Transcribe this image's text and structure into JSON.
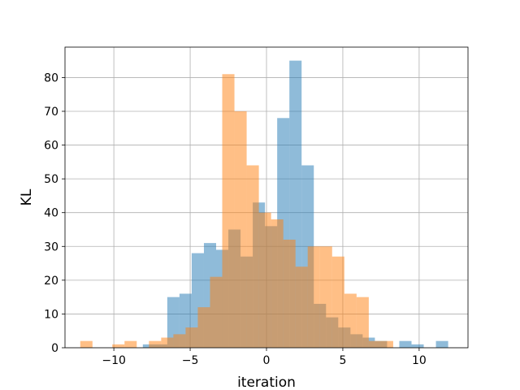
{
  "chart_data": {
    "type": "histogram",
    "title": "",
    "xlabel": "iteration",
    "ylabel": "KL",
    "xlim": [
      -13.2,
      13.2
    ],
    "ylim": [
      0,
      89
    ],
    "grid": true,
    "xticks": [
      -10,
      -5,
      0,
      5,
      10
    ],
    "xtick_labels": [
      "−10",
      "−5",
      "0",
      "5",
      "10"
    ],
    "yticks": [
      0,
      10,
      20,
      30,
      40,
      50,
      60,
      70,
      80
    ],
    "yticks_labels": [
      "0",
      "10",
      "20",
      "30",
      "40",
      "50",
      "60",
      "70",
      "80"
    ],
    "series": [
      {
        "color": "#1f77b4",
        "opacity": 0.5,
        "bins": [
          {
            "x0": -8.1,
            "x1": -6.5,
            "count": 1
          },
          {
            "x0": -6.5,
            "x1": -5.7,
            "count": 15
          },
          {
            "x0": -5.7,
            "x1": -4.9,
            "count": 16
          },
          {
            "x0": -4.9,
            "x1": -4.1,
            "count": 28
          },
          {
            "x0": -4.1,
            "x1": -3.3,
            "count": 31
          },
          {
            "x0": -3.3,
            "x1": -2.5,
            "count": 29
          },
          {
            "x0": -2.5,
            "x1": -1.7,
            "count": 35
          },
          {
            "x0": -1.7,
            "x1": -0.9,
            "count": 27
          },
          {
            "x0": -0.9,
            "x1": -0.1,
            "count": 43
          },
          {
            "x0": -0.1,
            "x1": 0.7,
            "count": 36
          },
          {
            "x0": 0.7,
            "x1": 1.5,
            "count": 68
          },
          {
            "x0": 1.5,
            "x1": 2.3,
            "count": 85
          },
          {
            "x0": 2.3,
            "x1": 3.1,
            "count": 54
          },
          {
            "x0": 3.1,
            "x1": 3.9,
            "count": 13
          },
          {
            "x0": 3.9,
            "x1": 4.7,
            "count": 9
          },
          {
            "x0": 4.7,
            "x1": 5.5,
            "count": 6
          },
          {
            "x0": 5.5,
            "x1": 6.3,
            "count": 4
          },
          {
            "x0": 6.3,
            "x1": 7.1,
            "count": 3
          },
          {
            "x0": 7.1,
            "x1": 7.9,
            "count": 2
          },
          {
            "x0": 8.7,
            "x1": 9.5,
            "count": 2
          },
          {
            "x0": 9.5,
            "x1": 10.3,
            "count": 1
          },
          {
            "x0": 11.1,
            "x1": 11.9,
            "count": 2
          }
        ]
      },
      {
        "color": "#ff7f0e",
        "opacity": 0.5,
        "bins": [
          {
            "x0": -12.2,
            "x1": -11.4,
            "count": 2
          },
          {
            "x0": -10.1,
            "x1": -9.3,
            "count": 1
          },
          {
            "x0": -9.3,
            "x1": -8.5,
            "count": 2
          },
          {
            "x0": -7.7,
            "x1": -6.9,
            "count": 2
          },
          {
            "x0": -6.9,
            "x1": -6.1,
            "count": 3
          },
          {
            "x0": -6.1,
            "x1": -5.3,
            "count": 4
          },
          {
            "x0": -5.3,
            "x1": -4.5,
            "count": 6
          },
          {
            "x0": -4.5,
            "x1": -3.7,
            "count": 12
          },
          {
            "x0": -3.7,
            "x1": -2.9,
            "count": 21
          },
          {
            "x0": -2.9,
            "x1": -2.1,
            "count": 81
          },
          {
            "x0": -2.1,
            "x1": -1.3,
            "count": 70
          },
          {
            "x0": -1.3,
            "x1": -0.5,
            "count": 54
          },
          {
            "x0": -0.5,
            "x1": 0.3,
            "count": 40
          },
          {
            "x0": 0.3,
            "x1": 1.1,
            "count": 38
          },
          {
            "x0": 1.1,
            "x1": 1.9,
            "count": 32
          },
          {
            "x0": 1.9,
            "x1": 2.7,
            "count": 24
          },
          {
            "x0": 2.7,
            "x1": 3.5,
            "count": 30
          },
          {
            "x0": 3.5,
            "x1": 4.3,
            "count": 30
          },
          {
            "x0": 4.3,
            "x1": 5.1,
            "count": 27
          },
          {
            "x0": 5.1,
            "x1": 5.9,
            "count": 16
          },
          {
            "x0": 5.9,
            "x1": 6.7,
            "count": 15
          },
          {
            "x0": 6.7,
            "x1": 7.5,
            "count": 2
          },
          {
            "x0": 7.5,
            "x1": 8.3,
            "count": 2
          }
        ]
      }
    ]
  }
}
